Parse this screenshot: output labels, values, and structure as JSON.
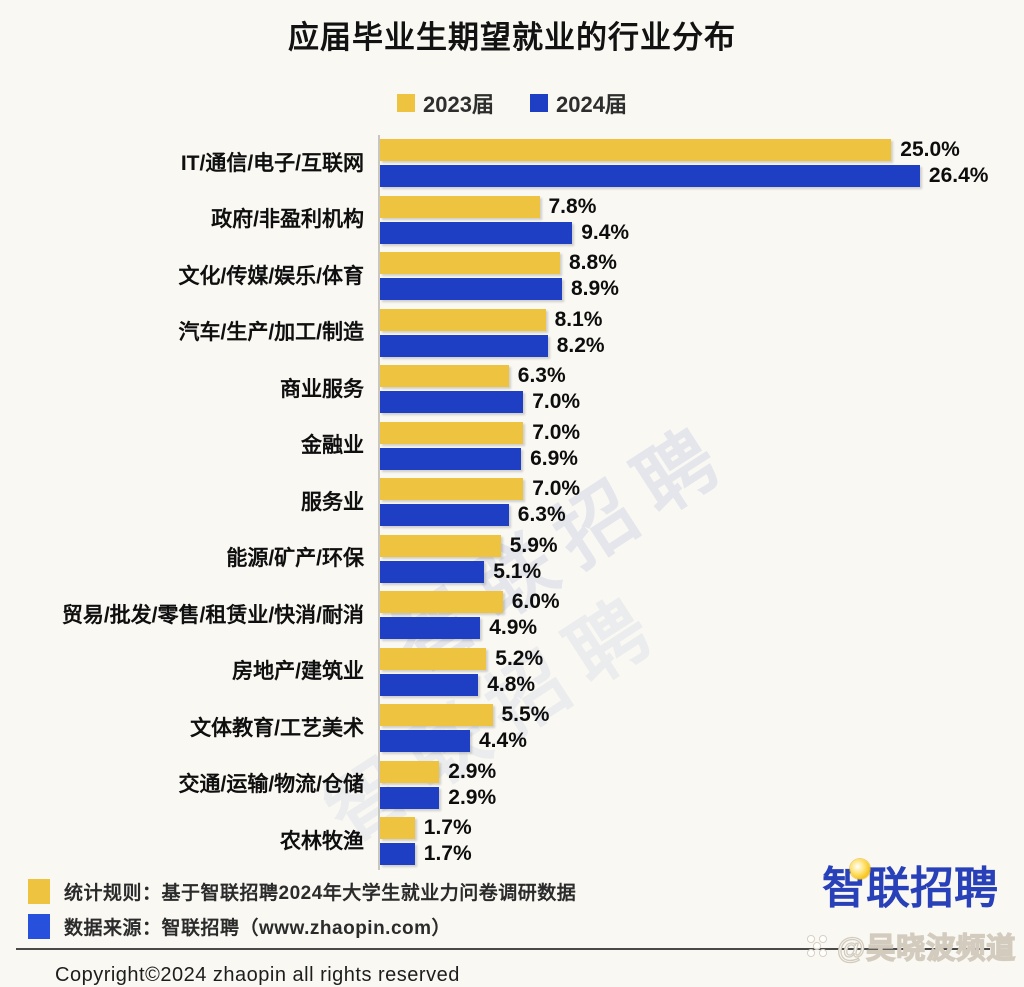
{
  "title": "应届毕业生期望就业的行业分布",
  "legend": [
    {
      "label": "2023届",
      "color": "#eec33f"
    },
    {
      "label": "2024届",
      "color": "#1e3fc4"
    }
  ],
  "chart_data": {
    "type": "bar",
    "orientation": "horizontal",
    "title": "应届毕业生期望就业的行业分布",
    "value_suffix": "%",
    "xlim": [
      0,
      26.4
    ],
    "grid": false,
    "legend_position": "top",
    "categories": [
      "IT/通信/电子/互联网",
      "政府/非盈利机构",
      "文化/传媒/娱乐/体育",
      "汽车/生产/加工/制造",
      "商业服务",
      "金融业",
      "服务业",
      "能源/矿产/环保",
      "贸易/批发/零售/租赁业/快消/耐消",
      "房地产/建筑业",
      "文体教育/工艺美术",
      "交通/运输/物流/仓储",
      "农林牧渔"
    ],
    "series": [
      {
        "name": "2023届",
        "color": "#eec33f",
        "values": [
          25.0,
          7.8,
          8.8,
          8.1,
          6.3,
          7.0,
          7.0,
          5.9,
          6.0,
          5.2,
          5.5,
          2.9,
          1.7
        ]
      },
      {
        "name": "2024届",
        "color": "#1e3fc4",
        "values": [
          26.4,
          9.4,
          8.9,
          8.2,
          7.0,
          6.9,
          6.3,
          5.1,
          4.9,
          4.8,
          4.4,
          2.9,
          1.7
        ]
      }
    ]
  },
  "watermarks": {
    "diagonal_text": "智联招聘",
    "channel_text": "@吴晓波频道"
  },
  "footer": {
    "notes": [
      {
        "color": "#eec33f",
        "text": "统计规则：基于智联招聘2024年大学生就业力问卷调研数据"
      },
      {
        "color": "#2750dc",
        "text": "数据来源：智联招聘（www.zhaopin.com）"
      }
    ],
    "copyright": "Copyright©2024 zhaopin all rights reserved",
    "logo_text": "智联招聘"
  }
}
